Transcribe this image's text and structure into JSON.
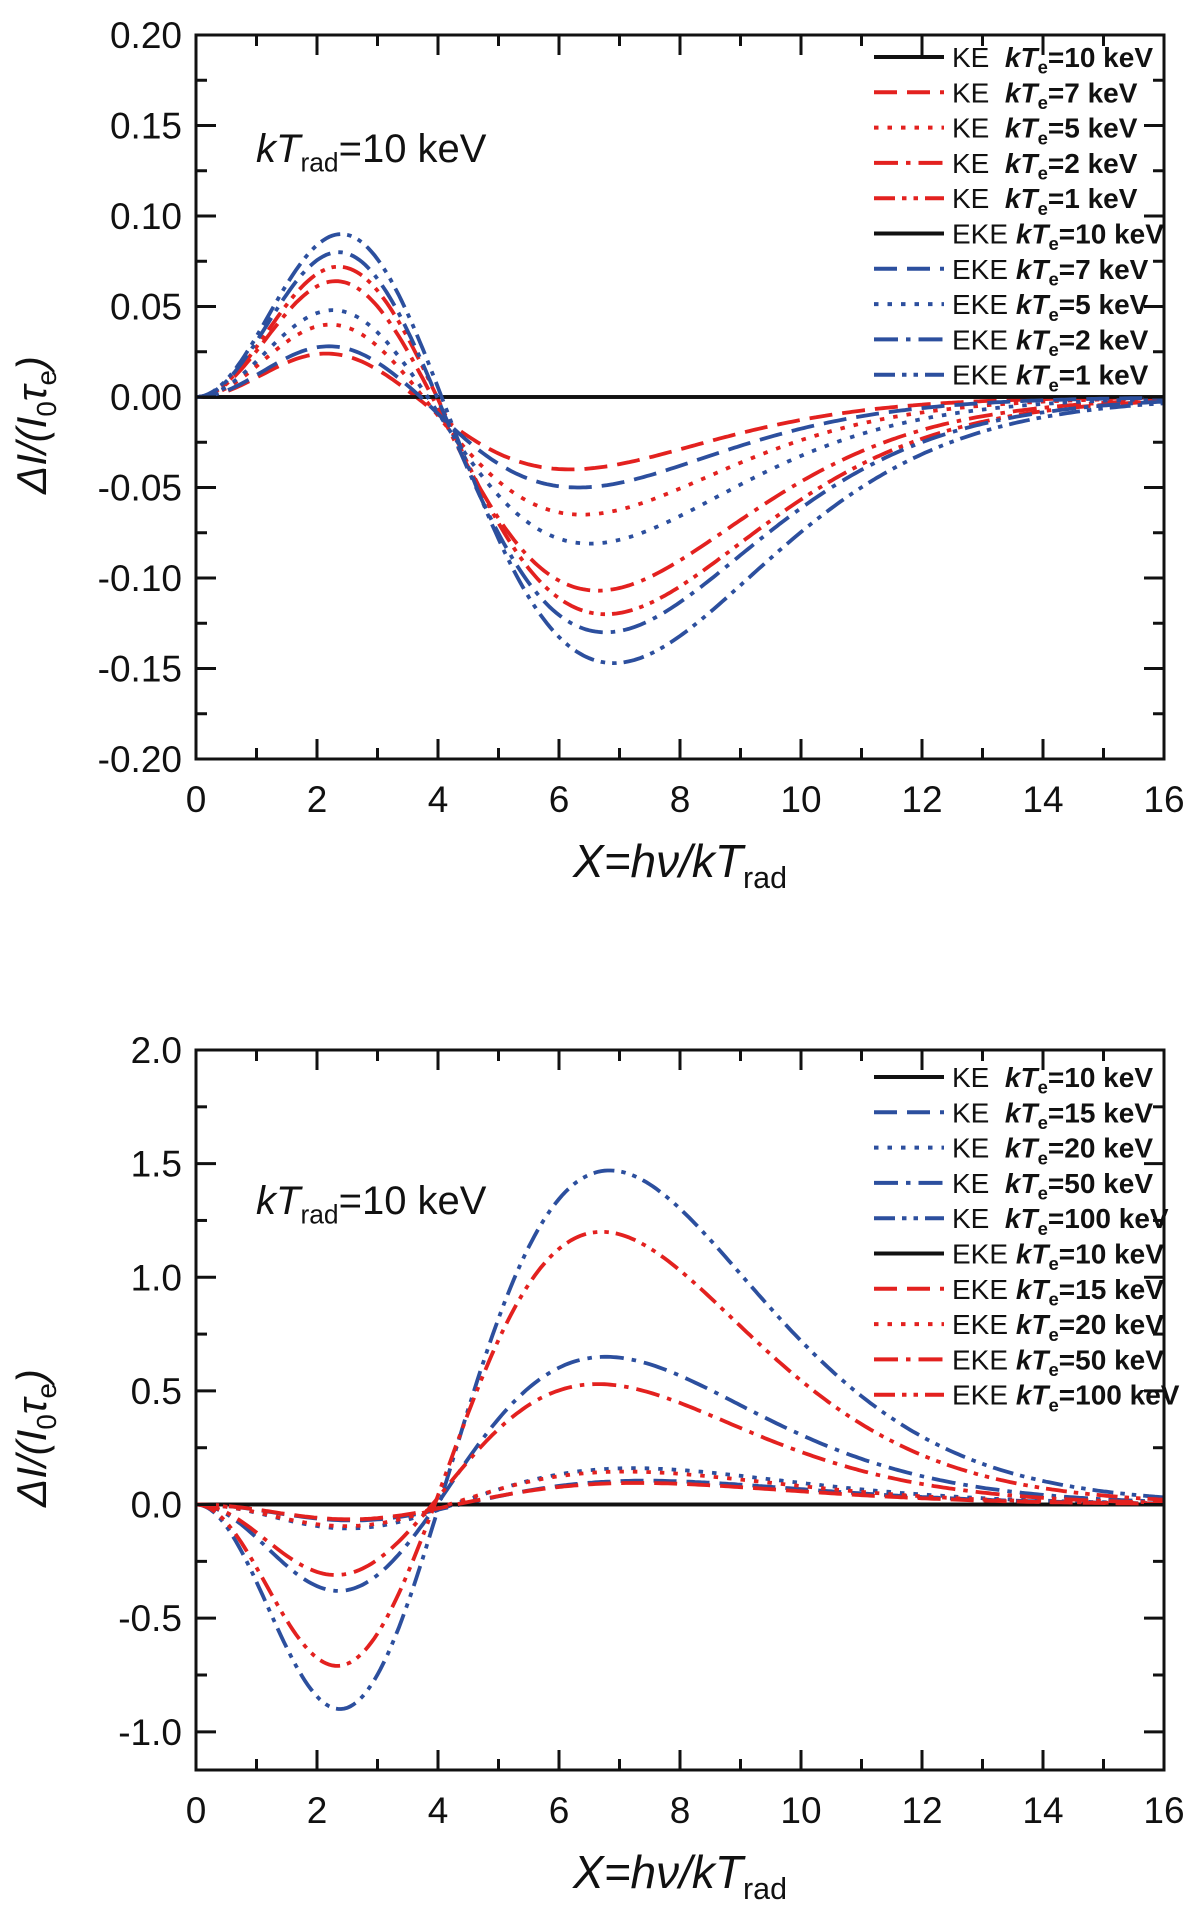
{
  "figure": {
    "background": "#ffffff",
    "axis_color": "#111111",
    "series_red": "#e3211f",
    "series_blue": "#2c4f9e"
  },
  "chart_data": [
    {
      "type": "line",
      "panel": "top",
      "annotation": [
        {
          "t": "kT",
          "italic": true
        },
        {
          "t": "rad",
          "sub": true
        },
        {
          "t": "=10 keV"
        }
      ],
      "xlabel": [
        {
          "t": "X=h",
          "italic": true
        },
        {
          "t": "ν",
          "italic": true
        },
        {
          "t": "/kT",
          "italic": true
        },
        {
          "t": "rad",
          "sub": true
        }
      ],
      "ylabel": [
        {
          "t": "Δ",
          "italic": true
        },
        {
          "t": "I",
          "italic": true
        },
        {
          "t": "/(",
          "italic": true
        },
        {
          "t": "I",
          "italic": true
        },
        {
          "t": "0",
          "sub": true
        },
        {
          "t": "τ",
          "italic": true
        },
        {
          "t": "e",
          "sub": true
        },
        {
          "t": ")",
          "italic": true
        }
      ],
      "xlim": [
        0,
        16
      ],
      "ylim": [
        -0.2,
        0.2
      ],
      "x_minor": 1,
      "y_minor": 0.025,
      "xticks": [
        {
          "v": 0,
          "label": "0"
        },
        {
          "v": 2,
          "label": "2"
        },
        {
          "v": 4,
          "label": "4"
        },
        {
          "v": 6,
          "label": "6"
        },
        {
          "v": 8,
          "label": "8"
        },
        {
          "v": 10,
          "label": "10"
        },
        {
          "v": 12,
          "label": "12"
        },
        {
          "v": 14,
          "label": "14"
        },
        {
          "v": 16,
          "label": "16"
        }
      ],
      "yticks": [
        {
          "v": 0.2,
          "label": "0.20"
        },
        {
          "v": 0.15,
          "label": "0.15"
        },
        {
          "v": 0.1,
          "label": "0.10"
        },
        {
          "v": 0.05,
          "label": "0.05"
        },
        {
          "v": 0.0,
          "label": "0.00"
        },
        {
          "v": -0.05,
          "label": "-0.05"
        },
        {
          "v": -0.1,
          "label": "-0.10"
        },
        {
          "v": -0.15,
          "label": "-0.15"
        },
        {
          "v": -0.2,
          "label": "-0.20"
        }
      ],
      "legend_unit": "keV",
      "legend_var": "kT",
      "legend_sub": "e",
      "series": [
        {
          "group": "KE",
          "te": "10",
          "color": "#111111",
          "style": "solid",
          "amp_low": 0,
          "amp_high": 0,
          "stretch": 1.0
        },
        {
          "group": "KE",
          "te": "7",
          "color": "#e3211f",
          "style": "dashed",
          "amp_low": 0.024,
          "amp_high": -0.04,
          "stretch": 0.95
        },
        {
          "group": "KE",
          "te": "5",
          "color": "#e3211f",
          "style": "dotted",
          "amp_low": 0.04,
          "amp_high": -0.065,
          "stretch": 0.98
        },
        {
          "group": "KE",
          "te": "2",
          "color": "#e3211f",
          "style": "dashdot",
          "amp_low": 0.064,
          "amp_high": -0.107,
          "stretch": 1.02
        },
        {
          "group": "KE",
          "te": "1",
          "color": "#e3211f",
          "style": "dashdotdot",
          "amp_low": 0.072,
          "amp_high": -0.12,
          "stretch": 1.04
        },
        {
          "group": "EKE",
          "te": "10",
          "color": "#111111",
          "style": "solid",
          "amp_low": 0,
          "amp_high": 0,
          "stretch": 1.0
        },
        {
          "group": "EKE",
          "te": "7",
          "color": "#2c4f9e",
          "style": "dashed",
          "amp_low": 0.028,
          "amp_high": -0.05,
          "stretch": 0.97
        },
        {
          "group": "EKE",
          "te": "5",
          "color": "#2c4f9e",
          "style": "dotted",
          "amp_low": 0.048,
          "amp_high": -0.081,
          "stretch": 1.0
        },
        {
          "group": "EKE",
          "te": "2",
          "color": "#2c4f9e",
          "style": "dashdot",
          "amp_low": 0.08,
          "amp_high": -0.13,
          "stretch": 1.04
        },
        {
          "group": "EKE",
          "te": "1",
          "color": "#2c4f9e",
          "style": "dashdotdot",
          "amp_low": 0.09,
          "amp_high": -0.147,
          "stretch": 1.06
        }
      ]
    },
    {
      "type": "line",
      "panel": "bottom",
      "annotation": [
        {
          "t": "kT",
          "italic": true
        },
        {
          "t": "rad",
          "sub": true
        },
        {
          "t": "=10 keV"
        }
      ],
      "xlabel": [
        {
          "t": "X=h",
          "italic": true
        },
        {
          "t": "ν",
          "italic": true
        },
        {
          "t": "/kT",
          "italic": true
        },
        {
          "t": "rad",
          "sub": true
        }
      ],
      "ylabel": [
        {
          "t": "Δ",
          "italic": true
        },
        {
          "t": "I",
          "italic": true
        },
        {
          "t": "/(",
          "italic": true
        },
        {
          "t": "I",
          "italic": true
        },
        {
          "t": "0",
          "sub": true
        },
        {
          "t": "τ",
          "italic": true
        },
        {
          "t": "e",
          "sub": true
        },
        {
          "t": ")",
          "italic": true
        }
      ],
      "xlim": [
        0,
        16
      ],
      "ylim": [
        -1.168,
        2.0
      ],
      "x_minor": 1,
      "y_minor": 0.25,
      "xticks": [
        {
          "v": 0,
          "label": "0"
        },
        {
          "v": 2,
          "label": "2"
        },
        {
          "v": 4,
          "label": "4"
        },
        {
          "v": 6,
          "label": "6"
        },
        {
          "v": 8,
          "label": "8"
        },
        {
          "v": 10,
          "label": "10"
        },
        {
          "v": 12,
          "label": "12"
        },
        {
          "v": 14,
          "label": "14"
        },
        {
          "v": 16,
          "label": "16"
        }
      ],
      "yticks": [
        {
          "v": 2.0,
          "label": "2.0"
        },
        {
          "v": 1.5,
          "label": "1.5"
        },
        {
          "v": 1.0,
          "label": "1.0"
        },
        {
          "v": 0.5,
          "label": "0.5"
        },
        {
          "v": 0.0,
          "label": "0.0"
        },
        {
          "v": -0.5,
          "label": "-0.5"
        },
        {
          "v": -1.0,
          "label": "-1.0"
        }
      ],
      "legend_unit": "keV",
      "legend_var": "kT",
      "legend_sub": "e",
      "series": [
        {
          "group": "KE",
          "te": "10",
          "color": "#111111",
          "style": "solid",
          "amp_low": 0,
          "amp_high": 0,
          "stretch": 1.0
        },
        {
          "group": "KE",
          "te": "15",
          "color": "#2c4f9e",
          "style": "dashed",
          "amp_low": -0.07,
          "amp_high": 0.105,
          "stretch": 1.14
        },
        {
          "group": "KE",
          "te": "20",
          "color": "#2c4f9e",
          "style": "dotted",
          "amp_low": -0.105,
          "amp_high": 0.16,
          "stretch": 1.11
        },
        {
          "group": "KE",
          "te": "50",
          "color": "#2c4f9e",
          "style": "dashdot",
          "amp_low": -0.38,
          "amp_high": 0.65,
          "stretch": 1.04
        },
        {
          "group": "KE",
          "te": "100",
          "color": "#2c4f9e",
          "style": "dashdotdot",
          "amp_low": -0.9,
          "amp_high": 1.47,
          "stretch": 1.05
        },
        {
          "group": "EKE",
          "te": "10",
          "color": "#111111",
          "style": "solid",
          "amp_low": 0,
          "amp_high": 0,
          "stretch": 1.0
        },
        {
          "group": "EKE",
          "te": "15",
          "color": "#e3211f",
          "style": "dashed",
          "amp_low": -0.065,
          "amp_high": 0.095,
          "stretch": 1.12
        },
        {
          "group": "EKE",
          "te": "20",
          "color": "#e3211f",
          "style": "dotted",
          "amp_low": -0.095,
          "amp_high": 0.145,
          "stretch": 1.09
        },
        {
          "group": "EKE",
          "te": "50",
          "color": "#e3211f",
          "style": "dashdot",
          "amp_low": -0.31,
          "amp_high": 0.53,
          "stretch": 1.02
        },
        {
          "group": "EKE",
          "te": "100",
          "color": "#e3211f",
          "style": "dashdotdot",
          "amp_low": -0.71,
          "amp_high": 1.2,
          "stretch": 1.03
        }
      ]
    }
  ]
}
